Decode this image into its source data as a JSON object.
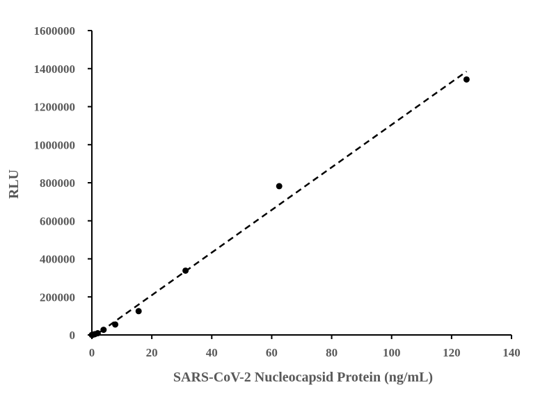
{
  "chart_data": {
    "type": "scatter",
    "title": "",
    "xlabel": "SARS-CoV-2 Nucleocapsid Protein (ng/mL)",
    "ylabel": "RLU",
    "xlim": [
      0,
      140
    ],
    "ylim": [
      0,
      1600000
    ],
    "xticks": [
      0,
      20,
      40,
      60,
      80,
      100,
      120,
      140
    ],
    "yticks": [
      0,
      200000,
      400000,
      600000,
      800000,
      1000000,
      1200000,
      1400000,
      1600000
    ],
    "grid": false,
    "legend": "none",
    "series": [
      {
        "x": [
          0,
          0.49,
          0.98,
          1.95,
          3.9,
          7.8,
          15.6,
          31.25,
          62.5,
          125
        ],
        "y": [
          0,
          2000,
          4000,
          9000,
          27000,
          55000,
          125000,
          338000,
          782000,
          1343000
        ]
      }
    ],
    "trendline": {
      "style": "dashed",
      "x": [
        0,
        125
      ],
      "y": [
        -15000,
        1385000
      ]
    },
    "colors": {
      "marker": "#000000",
      "axis": "#000000",
      "text": "#595959"
    }
  }
}
